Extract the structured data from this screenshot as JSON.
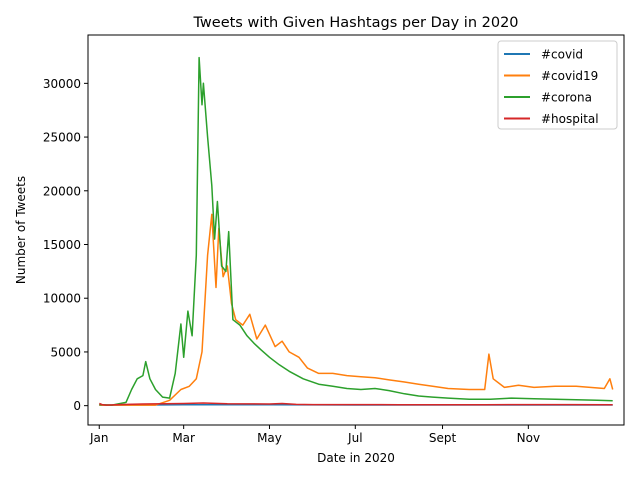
{
  "chart_data": {
    "type": "line",
    "title": "Tweets with Given Hashtags per Day in 2020",
    "xlabel": "Date in 2020",
    "ylabel": "Number of Tweets",
    "x_range": [
      "2019-12-24",
      "2021-01-08"
    ],
    "ylim": [
      -1800,
      34500
    ],
    "x_ticks": [
      {
        "date": "2020-01-01",
        "label": "Jan"
      },
      {
        "date": "2020-03-01",
        "label": "Mar"
      },
      {
        "date": "2020-05-01",
        "label": "May"
      },
      {
        "date": "2020-07-01",
        "label": "Jul"
      },
      {
        "date": "2020-09-01",
        "label": "Sept"
      },
      {
        "date": "2020-11-01",
        "label": "Nov"
      }
    ],
    "y_ticks": [
      0,
      5000,
      10000,
      15000,
      20000,
      25000,
      30000
    ],
    "grid": false,
    "legend_position": "top-right",
    "series": [
      {
        "name": "#covid",
        "color": "#1f77b4",
        "points": [
          [
            "2020-01-01",
            50
          ],
          [
            "2020-02-01",
            60
          ],
          [
            "2020-03-01",
            80
          ],
          [
            "2020-04-01",
            90
          ],
          [
            "2020-05-01",
            80
          ],
          [
            "2020-06-01",
            70
          ],
          [
            "2020-07-01",
            60
          ],
          [
            "2020-08-01",
            60
          ],
          [
            "2020-09-01",
            60
          ],
          [
            "2020-10-01",
            60
          ],
          [
            "2020-11-01",
            60
          ],
          [
            "2020-12-01",
            60
          ],
          [
            "2020-12-31",
            60
          ]
        ]
      },
      {
        "name": "#covid19",
        "color": "#ff7f0e",
        "points": [
          [
            "2020-01-01",
            50
          ],
          [
            "2020-01-20",
            50
          ],
          [
            "2020-02-10",
            50
          ],
          [
            "2020-02-20",
            500
          ],
          [
            "2020-02-28",
            1500
          ],
          [
            "2020-03-05",
            1800
          ],
          [
            "2020-03-10",
            2500
          ],
          [
            "2020-03-14",
            5000
          ],
          [
            "2020-03-18",
            14000
          ],
          [
            "2020-03-21",
            17800
          ],
          [
            "2020-03-24",
            11000
          ],
          [
            "2020-03-26",
            16500
          ],
          [
            "2020-03-29",
            12000
          ],
          [
            "2020-04-01",
            13000
          ],
          [
            "2020-04-04",
            9500
          ],
          [
            "2020-04-07",
            8000
          ],
          [
            "2020-04-12",
            7500
          ],
          [
            "2020-04-17",
            8500
          ],
          [
            "2020-04-22",
            6200
          ],
          [
            "2020-04-28",
            7500
          ],
          [
            "2020-05-05",
            5500
          ],
          [
            "2020-05-10",
            6000
          ],
          [
            "2020-05-15",
            5000
          ],
          [
            "2020-05-22",
            4500
          ],
          [
            "2020-05-28",
            3500
          ],
          [
            "2020-06-05",
            3000
          ],
          [
            "2020-06-15",
            3000
          ],
          [
            "2020-06-25",
            2800
          ],
          [
            "2020-07-05",
            2700
          ],
          [
            "2020-07-15",
            2600
          ],
          [
            "2020-07-25",
            2400
          ],
          [
            "2020-08-05",
            2200
          ],
          [
            "2020-08-15",
            2000
          ],
          [
            "2020-08-25",
            1800
          ],
          [
            "2020-09-05",
            1600
          ],
          [
            "2020-09-20",
            1500
          ],
          [
            "2020-10-01",
            1500
          ],
          [
            "2020-10-04",
            4800
          ],
          [
            "2020-10-07",
            2500
          ],
          [
            "2020-10-15",
            1700
          ],
          [
            "2020-10-25",
            1900
          ],
          [
            "2020-11-05",
            1700
          ],
          [
            "2020-11-20",
            1800
          ],
          [
            "2020-12-05",
            1800
          ],
          [
            "2020-12-15",
            1700
          ],
          [
            "2020-12-25",
            1600
          ],
          [
            "2020-12-29",
            2500
          ],
          [
            "2020-12-31",
            1500
          ]
        ]
      },
      {
        "name": "#corona",
        "color": "#2ca02c",
        "points": [
          [
            "2020-01-01",
            100
          ],
          [
            "2020-01-10",
            50
          ],
          [
            "2020-01-20",
            300
          ],
          [
            "2020-01-24",
            1500
          ],
          [
            "2020-01-28",
            2500
          ],
          [
            "2020-02-01",
            2800
          ],
          [
            "2020-02-03",
            4100
          ],
          [
            "2020-02-06",
            2500
          ],
          [
            "2020-02-10",
            1500
          ],
          [
            "2020-02-15",
            800
          ],
          [
            "2020-02-20",
            700
          ],
          [
            "2020-02-24",
            3000
          ],
          [
            "2020-02-28",
            7600
          ],
          [
            "2020-03-01",
            4500
          ],
          [
            "2020-03-04",
            8800
          ],
          [
            "2020-03-07",
            6500
          ],
          [
            "2020-03-10",
            14000
          ],
          [
            "2020-03-12",
            32400
          ],
          [
            "2020-03-14",
            28000
          ],
          [
            "2020-03-15",
            30000
          ],
          [
            "2020-03-18",
            25000
          ],
          [
            "2020-03-21",
            20500
          ],
          [
            "2020-03-23",
            15500
          ],
          [
            "2020-03-25",
            19000
          ],
          [
            "2020-03-28",
            13000
          ],
          [
            "2020-03-31",
            12500
          ],
          [
            "2020-04-02",
            16200
          ],
          [
            "2020-04-05",
            8000
          ],
          [
            "2020-04-10",
            7500
          ],
          [
            "2020-04-15",
            6500
          ],
          [
            "2020-04-20",
            5800
          ],
          [
            "2020-04-25",
            5200
          ],
          [
            "2020-05-01",
            4500
          ],
          [
            "2020-05-08",
            3800
          ],
          [
            "2020-05-15",
            3200
          ],
          [
            "2020-05-25",
            2500
          ],
          [
            "2020-06-05",
            2000
          ],
          [
            "2020-06-15",
            1800
          ],
          [
            "2020-06-25",
            1600
          ],
          [
            "2020-07-05",
            1500
          ],
          [
            "2020-07-15",
            1600
          ],
          [
            "2020-07-25",
            1400
          ],
          [
            "2020-08-05",
            1100
          ],
          [
            "2020-08-15",
            900
          ],
          [
            "2020-08-25",
            800
          ],
          [
            "2020-09-05",
            700
          ],
          [
            "2020-09-20",
            600
          ],
          [
            "2020-10-05",
            600
          ],
          [
            "2020-10-20",
            700
          ],
          [
            "2020-11-05",
            650
          ],
          [
            "2020-11-20",
            600
          ],
          [
            "2020-12-05",
            550
          ],
          [
            "2020-12-20",
            500
          ],
          [
            "2020-12-31",
            450
          ]
        ]
      },
      {
        "name": "#hospital",
        "color": "#d62728",
        "points": [
          [
            "2020-01-01",
            200
          ],
          [
            "2020-01-03",
            100
          ],
          [
            "2020-01-06",
            50
          ],
          [
            "2020-01-15",
            100
          ],
          [
            "2020-02-01",
            150
          ],
          [
            "2020-03-01",
            200
          ],
          [
            "2020-03-15",
            250
          ],
          [
            "2020-04-01",
            180
          ],
          [
            "2020-05-01",
            150
          ],
          [
            "2020-05-10",
            200
          ],
          [
            "2020-05-20",
            120
          ],
          [
            "2020-06-01",
            100
          ],
          [
            "2020-07-01",
            100
          ],
          [
            "2020-08-01",
            90
          ],
          [
            "2020-09-01",
            90
          ],
          [
            "2020-10-01",
            90
          ],
          [
            "2020-11-01",
            100
          ],
          [
            "2020-12-01",
            100
          ],
          [
            "2020-12-31",
            90
          ]
        ]
      }
    ]
  }
}
